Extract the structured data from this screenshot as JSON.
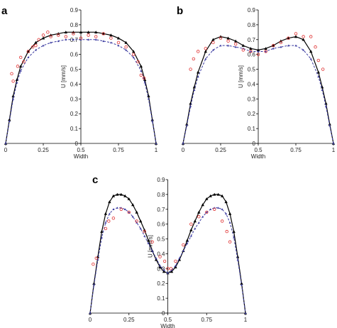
{
  "chart_data": [
    {
      "type": "line",
      "label": "a",
      "xlabel": "Width",
      "ylabel": "U [mm/s]",
      "xlim": [
        0,
        1
      ],
      "ylim": [
        0,
        0.9
      ],
      "xticks": [
        0,
        0.25,
        0.5,
        0.75,
        1
      ],
      "yticks": [
        0,
        0.1,
        0.2,
        0.3,
        0.4,
        0.5,
        0.6,
        0.7,
        0.8,
        0.9
      ],
      "series": [
        {
          "color": "#000000",
          "mode": "lines",
          "dash": false,
          "x": [
            0,
            0.025,
            0.05,
            0.075,
            0.1,
            0.15,
            0.2,
            0.25,
            0.3,
            0.35,
            0.4,
            0.45,
            0.5,
            0.55,
            0.6,
            0.65,
            0.7,
            0.75,
            0.8,
            0.85,
            0.9,
            0.925,
            0.95,
            0.975,
            1
          ],
          "values": [
            0,
            0.16,
            0.32,
            0.43,
            0.52,
            0.62,
            0.68,
            0.71,
            0.73,
            0.74,
            0.75,
            0.75,
            0.75,
            0.75,
            0.75,
            0.74,
            0.73,
            0.71,
            0.68,
            0.62,
            0.52,
            0.43,
            0.32,
            0.16,
            0
          ]
        },
        {
          "color": "#3a3aa0",
          "mode": "lines",
          "dash": true,
          "x": [
            0,
            0.025,
            0.05,
            0.075,
            0.1,
            0.15,
            0.2,
            0.25,
            0.3,
            0.35,
            0.4,
            0.45,
            0.5,
            0.55,
            0.6,
            0.65,
            0.7,
            0.75,
            0.8,
            0.85,
            0.9,
            0.925,
            0.95,
            0.975,
            1
          ],
          "values": [
            0,
            0.15,
            0.3,
            0.41,
            0.49,
            0.58,
            0.63,
            0.66,
            0.68,
            0.69,
            0.7,
            0.7,
            0.7,
            0.7,
            0.7,
            0.69,
            0.68,
            0.66,
            0.63,
            0.58,
            0.49,
            0.41,
            0.3,
            0.15,
            0
          ]
        },
        {
          "color": "#e03030",
          "mode": "markers",
          "x": [
            0.04,
            0.05,
            0.08,
            0.1,
            0.12,
            0.15,
            0.18,
            0.2,
            0.22,
            0.25,
            0.28,
            0.3,
            0.35,
            0.4,
            0.45,
            0.5,
            0.55,
            0.6,
            0.65,
            0.7,
            0.75,
            0.8,
            0.85,
            0.88,
            0.9,
            0.92
          ],
          "values": [
            0.47,
            0.42,
            0.52,
            0.58,
            0.55,
            0.62,
            0.65,
            0.66,
            0.7,
            0.73,
            0.75,
            0.72,
            0.73,
            0.72,
            0.74,
            0.71,
            0.73,
            0.72,
            0.74,
            0.71,
            0.68,
            0.65,
            0.6,
            0.55,
            0.46,
            0.44
          ]
        }
      ]
    },
    {
      "type": "line",
      "label": "b",
      "xlabel": "Width",
      "ylabel": "U [mm/s]",
      "xlim": [
        0,
        1
      ],
      "ylim": [
        0,
        0.9
      ],
      "xticks": [
        0,
        0.25,
        0.5,
        0.75,
        1
      ],
      "yticks": [
        0,
        0.1,
        0.2,
        0.3,
        0.4,
        0.5,
        0.6,
        0.7,
        0.8,
        0.9
      ],
      "series": [
        {
          "color": "#000000",
          "mode": "lines",
          "dash": false,
          "x": [
            0,
            0.025,
            0.05,
            0.075,
            0.1,
            0.15,
            0.2,
            0.25,
            0.3,
            0.35,
            0.4,
            0.45,
            0.5,
            0.55,
            0.6,
            0.65,
            0.7,
            0.75,
            0.8,
            0.85,
            0.9,
            0.925,
            0.95,
            0.975,
            1
          ],
          "values": [
            0,
            0.13,
            0.27,
            0.38,
            0.48,
            0.62,
            0.7,
            0.72,
            0.71,
            0.69,
            0.66,
            0.64,
            0.63,
            0.64,
            0.66,
            0.69,
            0.71,
            0.72,
            0.7,
            0.62,
            0.48,
            0.38,
            0.27,
            0.13,
            0
          ]
        },
        {
          "color": "#3a3aa0",
          "mode": "lines",
          "dash": true,
          "x": [
            0,
            0.025,
            0.05,
            0.075,
            0.1,
            0.15,
            0.2,
            0.25,
            0.3,
            0.35,
            0.4,
            0.45,
            0.5,
            0.55,
            0.6,
            0.65,
            0.7,
            0.75,
            0.8,
            0.85,
            0.9,
            0.925,
            0.95,
            0.975,
            1
          ],
          "values": [
            0,
            0.12,
            0.25,
            0.36,
            0.45,
            0.57,
            0.63,
            0.66,
            0.66,
            0.65,
            0.64,
            0.62,
            0.62,
            0.62,
            0.64,
            0.65,
            0.66,
            0.66,
            0.63,
            0.57,
            0.45,
            0.36,
            0.25,
            0.12,
            0
          ]
        },
        {
          "color": "#e03030",
          "mode": "markers",
          "x": [
            0.05,
            0.07,
            0.1,
            0.15,
            0.2,
            0.25,
            0.3,
            0.35,
            0.4,
            0.45,
            0.5,
            0.55,
            0.6,
            0.65,
            0.7,
            0.75,
            0.8,
            0.85,
            0.88,
            0.9,
            0.93
          ],
          "values": [
            0.5,
            0.57,
            0.62,
            0.64,
            0.68,
            0.71,
            0.69,
            0.67,
            0.63,
            0.62,
            0.6,
            0.62,
            0.66,
            0.68,
            0.71,
            0.74,
            0.72,
            0.72,
            0.65,
            0.56,
            0.5
          ]
        }
      ]
    },
    {
      "type": "line",
      "label": "c",
      "xlabel": "Width",
      "ylabel": "U [mm/s]",
      "xlim": [
        0,
        1
      ],
      "ylim": [
        0,
        0.9
      ],
      "xticks": [
        0,
        0.25,
        0.5,
        0.75,
        1
      ],
      "yticks": [
        0,
        0.1,
        0.2,
        0.3,
        0.4,
        0.5,
        0.6,
        0.7,
        0.8,
        0.9
      ],
      "series": [
        {
          "color": "#000000",
          "mode": "lines",
          "dash": false,
          "x": [
            0,
            0.025,
            0.05,
            0.075,
            0.1,
            0.125,
            0.15,
            0.175,
            0.2,
            0.225,
            0.25,
            0.275,
            0.3,
            0.325,
            0.35,
            0.375,
            0.4,
            0.425,
            0.45,
            0.475,
            0.5,
            0.525,
            0.55,
            0.575,
            0.6,
            0.625,
            0.65,
            0.675,
            0.7,
            0.725,
            0.75,
            0.775,
            0.8,
            0.825,
            0.85,
            0.875,
            0.9,
            0.925,
            0.95,
            0.975,
            1
          ],
          "values": [
            0,
            0.2,
            0.38,
            0.55,
            0.67,
            0.75,
            0.79,
            0.8,
            0.8,
            0.79,
            0.77,
            0.73,
            0.68,
            0.62,
            0.56,
            0.49,
            0.42,
            0.36,
            0.31,
            0.28,
            0.27,
            0.28,
            0.31,
            0.36,
            0.42,
            0.49,
            0.56,
            0.62,
            0.68,
            0.73,
            0.77,
            0.79,
            0.8,
            0.8,
            0.79,
            0.75,
            0.67,
            0.55,
            0.38,
            0.2,
            0
          ]
        },
        {
          "color": "#3a3aa0",
          "mode": "lines",
          "dash": true,
          "x": [
            0,
            0.025,
            0.05,
            0.075,
            0.1,
            0.125,
            0.15,
            0.175,
            0.2,
            0.225,
            0.25,
            0.275,
            0.3,
            0.325,
            0.35,
            0.375,
            0.4,
            0.425,
            0.45,
            0.475,
            0.5,
            0.525,
            0.55,
            0.575,
            0.6,
            0.625,
            0.65,
            0.675,
            0.7,
            0.725,
            0.75,
            0.775,
            0.8,
            0.825,
            0.85,
            0.875,
            0.9,
            0.925,
            0.95,
            0.975,
            1
          ],
          "values": [
            0,
            0.19,
            0.36,
            0.51,
            0.61,
            0.67,
            0.7,
            0.71,
            0.71,
            0.7,
            0.68,
            0.65,
            0.61,
            0.57,
            0.52,
            0.47,
            0.42,
            0.37,
            0.32,
            0.29,
            0.27,
            0.29,
            0.32,
            0.37,
            0.42,
            0.47,
            0.52,
            0.57,
            0.61,
            0.65,
            0.68,
            0.7,
            0.71,
            0.71,
            0.7,
            0.67,
            0.61,
            0.51,
            0.36,
            0.19,
            0
          ]
        },
        {
          "color": "#e03030",
          "mode": "markers",
          "x": [
            0.02,
            0.04,
            0.1,
            0.12,
            0.15,
            0.2,
            0.25,
            0.3,
            0.35,
            0.4,
            0.45,
            0.48,
            0.5,
            0.52,
            0.55,
            0.6,
            0.65,
            0.7,
            0.75,
            0.8,
            0.85,
            0.88,
            0.9
          ],
          "values": [
            0.33,
            0.37,
            0.57,
            0.62,
            0.64,
            0.7,
            0.68,
            0.62,
            0.55,
            0.48,
            0.38,
            0.35,
            0.3,
            0.3,
            0.35,
            0.46,
            0.6,
            0.65,
            0.68,
            0.7,
            0.62,
            0.55,
            0.48
          ]
        }
      ]
    }
  ]
}
